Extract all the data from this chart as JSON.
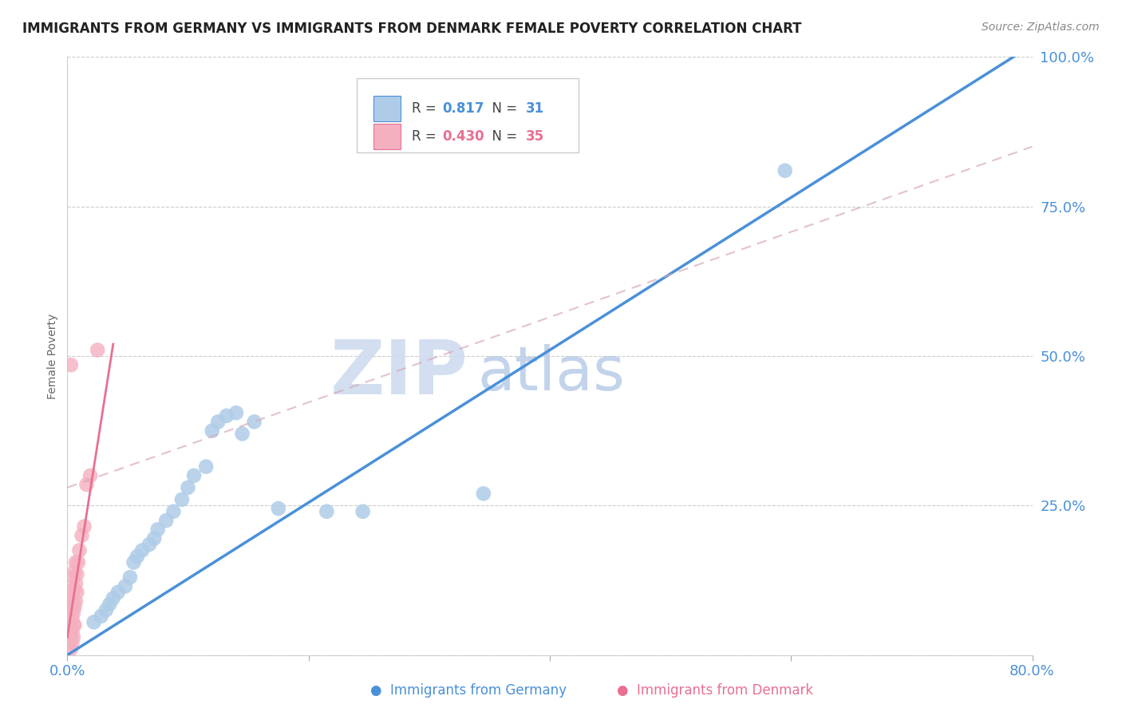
{
  "title": "IMMIGRANTS FROM GERMANY VS IMMIGRANTS FROM DENMARK FEMALE POVERTY CORRELATION CHART",
  "source": "Source: ZipAtlas.com",
  "ylabel": "Female Poverty",
  "xlim": [
    0.0,
    0.8
  ],
  "ylim": [
    0.0,
    1.0
  ],
  "ytick_labels": [
    "",
    "25.0%",
    "50.0%",
    "75.0%",
    "100.0%"
  ],
  "ytick_positions": [
    0.0,
    0.25,
    0.5,
    0.75,
    1.0
  ],
  "germany_R": "0.817",
  "germany_N": "31",
  "denmark_R": "0.430",
  "denmark_N": "35",
  "germany_color": "#aecce8",
  "denmark_color": "#f5b0c0",
  "germany_line_color": "#4a90d9",
  "denmark_line_color": "#e87090",
  "watermark_zip_color": "#c8ddf0",
  "watermark_atlas_color": "#b8cce0",
  "germany_line": [
    0.0,
    0.0,
    0.8,
    1.02
  ],
  "denmark_line": [
    0.0,
    0.28,
    0.8,
    0.85
  ],
  "germany_scatter": [
    [
      0.022,
      0.055
    ],
    [
      0.028,
      0.065
    ],
    [
      0.032,
      0.075
    ],
    [
      0.035,
      0.085
    ],
    [
      0.038,
      0.095
    ],
    [
      0.042,
      0.105
    ],
    [
      0.048,
      0.115
    ],
    [
      0.052,
      0.13
    ],
    [
      0.055,
      0.155
    ],
    [
      0.058,
      0.165
    ],
    [
      0.062,
      0.175
    ],
    [
      0.068,
      0.185
    ],
    [
      0.072,
      0.195
    ],
    [
      0.075,
      0.21
    ],
    [
      0.082,
      0.225
    ],
    [
      0.088,
      0.24
    ],
    [
      0.095,
      0.26
    ],
    [
      0.1,
      0.28
    ],
    [
      0.105,
      0.3
    ],
    [
      0.115,
      0.315
    ],
    [
      0.12,
      0.375
    ],
    [
      0.125,
      0.39
    ],
    [
      0.132,
      0.4
    ],
    [
      0.14,
      0.405
    ],
    [
      0.145,
      0.37
    ],
    [
      0.155,
      0.39
    ],
    [
      0.175,
      0.245
    ],
    [
      0.215,
      0.24
    ],
    [
      0.245,
      0.24
    ],
    [
      0.595,
      0.81
    ],
    [
      0.345,
      0.27
    ]
  ],
  "denmark_scatter": [
    [
      0.002,
      0.02
    ],
    [
      0.002,
      0.04
    ],
    [
      0.003,
      0.01
    ],
    [
      0.003,
      0.03
    ],
    [
      0.003,
      0.055
    ],
    [
      0.003,
      0.075
    ],
    [
      0.003,
      0.085
    ],
    [
      0.004,
      0.02
    ],
    [
      0.004,
      0.04
    ],
    [
      0.004,
      0.06
    ],
    [
      0.004,
      0.08
    ],
    [
      0.004,
      0.1
    ],
    [
      0.005,
      0.03
    ],
    [
      0.005,
      0.05
    ],
    [
      0.005,
      0.07
    ],
    [
      0.005,
      0.09
    ],
    [
      0.005,
      0.11
    ],
    [
      0.005,
      0.13
    ],
    [
      0.006,
      0.05
    ],
    [
      0.006,
      0.08
    ],
    [
      0.006,
      0.11
    ],
    [
      0.006,
      0.14
    ],
    [
      0.007,
      0.09
    ],
    [
      0.007,
      0.12
    ],
    [
      0.007,
      0.155
    ],
    [
      0.008,
      0.105
    ],
    [
      0.008,
      0.135
    ],
    [
      0.009,
      0.155
    ],
    [
      0.01,
      0.175
    ],
    [
      0.012,
      0.2
    ],
    [
      0.014,
      0.215
    ],
    [
      0.016,
      0.285
    ],
    [
      0.019,
      0.3
    ],
    [
      0.025,
      0.51
    ],
    [
      0.003,
      0.485
    ]
  ]
}
